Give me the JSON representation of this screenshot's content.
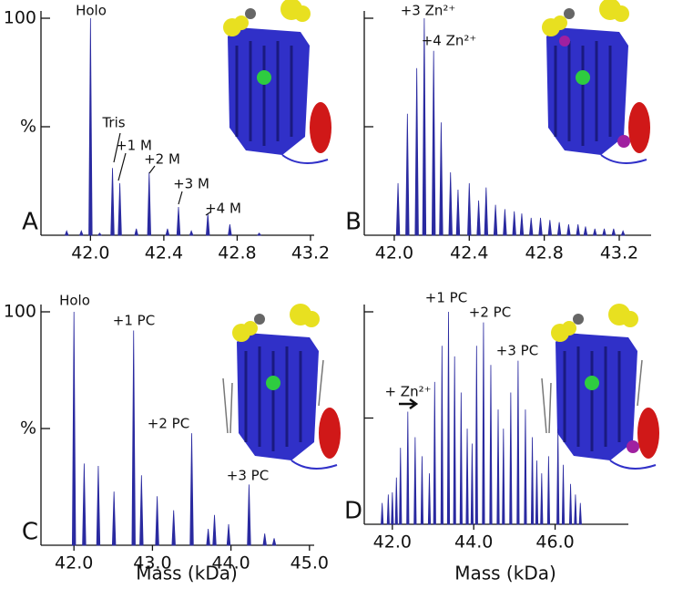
{
  "chart_data": [
    {
      "type": "spectrum",
      "panel_label": "A",
      "color": "#2a2aa0",
      "annotations": [
        "Holo",
        "Tris",
        "+1 M",
        "+2 M",
        "+3 M",
        "+4 M"
      ],
      "x": [
        41.87,
        41.95,
        42.0,
        42.05,
        42.12,
        42.16,
        42.25,
        42.32,
        42.42,
        42.48,
        42.55,
        42.64,
        42.76,
        42.92
      ],
      "values": [
        2,
        2,
        100,
        1,
        31,
        24,
        3,
        29,
        3,
        13,
        2,
        10,
        5,
        1
      ],
      "xlim": [
        41.73,
        43.22
      ],
      "ylim": [
        0,
        100
      ],
      "xticks": [
        {
          "value": 42.0,
          "label": "42.0"
        },
        42.4,
        42.8,
        43.2
      ],
      "yticks": [
        {
          "value": 50,
          "label": "%"
        },
        100
      ],
      "ytick_labels": true
    },
    {
      "type": "spectrum",
      "panel_label": "B",
      "color": "#2a2aa0",
      "annotations": [
        "+3 Zn²⁺",
        "+4 Zn²⁺"
      ],
      "x": [
        42.02,
        42.07,
        42.12,
        42.16,
        42.21,
        42.25,
        42.3,
        42.34,
        42.4,
        42.45,
        42.49,
        42.54,
        42.59,
        42.64,
        42.68,
        42.73,
        42.78,
        42.83,
        42.88,
        42.93,
        42.98,
        43.02,
        43.07,
        43.12,
        43.17,
        43.22
      ],
      "values": [
        24,
        56,
        77,
        100,
        85,
        52,
        29,
        21,
        24,
        16,
        22,
        14,
        12,
        11,
        10,
        8,
        8,
        7,
        6,
        5,
        5,
        4,
        3,
        3,
        3,
        2
      ],
      "xlim": [
        41.84,
        43.37
      ],
      "ylim": [
        0,
        100
      ],
      "xticks": [
        {
          "value": 42.0,
          "label": "42.0"
        },
        42.4,
        42.8,
        43.2
      ],
      "yticks": [
        50,
        100
      ],
      "ytick_labels": false
    },
    {
      "type": "spectrum",
      "panel_label": "C",
      "color": "#2a2aa0",
      "xlabel": "Mass (kDa)",
      "annotations": [
        "Holo",
        "+1 PC",
        "+2 PC",
        "+3 PC"
      ],
      "x": [
        42.0,
        42.13,
        42.31,
        42.51,
        42.76,
        42.86,
        43.06,
        43.27,
        43.5,
        43.71,
        43.79,
        43.97,
        44.23,
        44.43,
        44.55
      ],
      "values": [
        100,
        35,
        34,
        23,
        92,
        30,
        21,
        15,
        48,
        7,
        13,
        9,
        26,
        5,
        3
      ],
      "xlim": [
        41.58,
        45.06
      ],
      "ylim": [
        0,
        100
      ],
      "xticks": [
        {
          "value": 42.0,
          "label": "42.0"
        },
        {
          "value": 43.0,
          "label": "43.0"
        },
        {
          "value": 44.0,
          "label": "44.0"
        },
        {
          "value": 45.0,
          "label": "45.0"
        }
      ],
      "yticks": [
        {
          "value": 50,
          "label": "%"
        },
        100
      ],
      "ytick_labels": true
    },
    {
      "type": "spectrum",
      "panel_label": "D",
      "color": "#2a2aa0",
      "xlabel": "Mass (kDa)",
      "annotations": [
        "+ Zn²⁺",
        "+1 PC",
        "+2 PC",
        "+3 PC"
      ],
      "x": [
        41.75,
        41.9,
        42.0,
        42.1,
        42.2,
        42.38,
        42.56,
        42.73,
        42.91,
        43.04,
        43.22,
        43.38,
        43.53,
        43.69,
        43.84,
        43.96,
        44.07,
        44.24,
        44.42,
        44.6,
        44.73,
        44.91,
        45.09,
        45.27,
        45.44,
        45.55,
        45.67,
        45.84,
        46.07,
        46.2,
        46.38,
        46.5,
        46.62
      ],
      "values": [
        10,
        14,
        15,
        22,
        36,
        53,
        41,
        32,
        24,
        67,
        84,
        100,
        79,
        62,
        45,
        38,
        84,
        95,
        75,
        54,
        45,
        62,
        77,
        54,
        41,
        30,
        24,
        32,
        45,
        28,
        19,
        14,
        10
      ],
      "xlim": [
        41.31,
        47.8
      ],
      "ylim": [
        0,
        100
      ],
      "xticks": [
        {
          "value": 42.0,
          "label": "42.0"
        },
        {
          "value": 44.0,
          "label": "44.0"
        },
        {
          "value": 46.0,
          "label": "46.0"
        }
      ],
      "yticks": [
        50,
        100
      ],
      "ytick_labels": false
    }
  ]
}
